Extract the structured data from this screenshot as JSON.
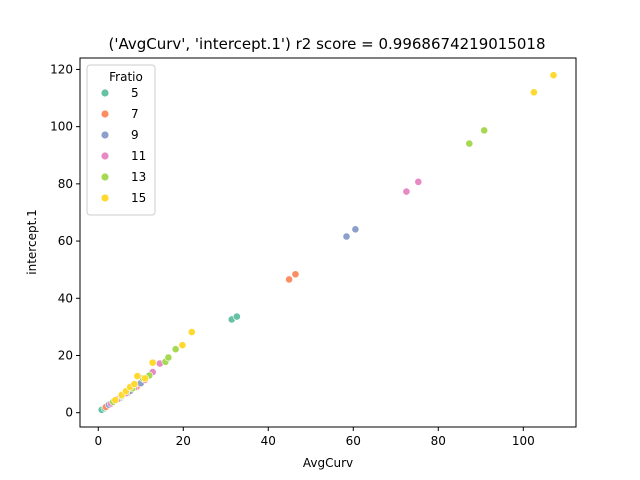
{
  "chart_data": {
    "type": "scatter",
    "title": "('AvgCurv', 'intercept.1') r2 score = 0.9968674219015018",
    "xlabel": "AvgCurv",
    "ylabel": "intercept.1",
    "xlim": [
      -4.3,
      112.4
    ],
    "ylim": [
      -5.0,
      124.0
    ],
    "xticks": [
      0,
      20,
      40,
      60,
      80,
      100
    ],
    "yticks": [
      0,
      20,
      40,
      60,
      80,
      100,
      120
    ],
    "grid": false,
    "legend": {
      "title": "Fratio",
      "placement": "top-left"
    },
    "series": [
      {
        "name": "5",
        "color": "#66c2a5",
        "points": [
          [
            0.8,
            1.0
          ],
          [
            1.5,
            1.6
          ],
          [
            2.5,
            2.6
          ],
          [
            3.5,
            3.7
          ],
          [
            5.0,
            5.0
          ],
          [
            7.0,
            7.0
          ],
          [
            9.0,
            9.5
          ],
          [
            31.4,
            32.6
          ],
          [
            32.6,
            33.6
          ]
        ]
      },
      {
        "name": "7",
        "color": "#fc8d62",
        "points": [
          [
            1.8,
            2.0
          ],
          [
            3.0,
            3.2
          ],
          [
            4.5,
            4.8
          ],
          [
            6.5,
            6.8
          ],
          [
            9.0,
            9.0
          ],
          [
            10.5,
            11.0
          ],
          [
            44.9,
            46.6
          ],
          [
            46.4,
            48.4
          ]
        ]
      },
      {
        "name": "9",
        "color": "#8da0cb",
        "points": [
          [
            2.5,
            2.8
          ],
          [
            4.0,
            4.2
          ],
          [
            5.5,
            5.7
          ],
          [
            7.5,
            7.6
          ],
          [
            10.0,
            10.3
          ],
          [
            58.4,
            61.6
          ],
          [
            60.5,
            64.1
          ]
        ]
      },
      {
        "name": "11",
        "color": "#e78ac3",
        "points": [
          [
            3.0,
            3.2
          ],
          [
            4.5,
            4.7
          ],
          [
            6.5,
            6.8
          ],
          [
            8.5,
            8.8
          ],
          [
            11.0,
            11.5
          ],
          [
            12.8,
            14.2
          ],
          [
            14.5,
            17.2
          ],
          [
            72.5,
            77.3
          ],
          [
            75.3,
            80.7
          ]
        ]
      },
      {
        "name": "13",
        "color": "#a6d854",
        "points": [
          [
            3.5,
            3.8
          ],
          [
            5.5,
            5.8
          ],
          [
            8.0,
            8.5
          ],
          [
            10.5,
            12.0
          ],
          [
            12.0,
            13.0
          ],
          [
            15.8,
            17.8
          ],
          [
            16.5,
            19.3
          ],
          [
            18.2,
            22.2
          ],
          [
            87.3,
            94.1
          ],
          [
            90.8,
            98.7
          ]
        ]
      },
      {
        "name": "15",
        "color": "#ffd92f",
        "points": [
          [
            4.0,
            4.4
          ],
          [
            5.5,
            6.2
          ],
          [
            6.5,
            7.5
          ],
          [
            7.5,
            9.0
          ],
          [
            8.5,
            10.0
          ],
          [
            9.2,
            12.8
          ],
          [
            11.0,
            12.0
          ],
          [
            12.8,
            17.5
          ],
          [
            19.8,
            23.6
          ],
          [
            22.0,
            28.2
          ],
          [
            102.5,
            112.0
          ],
          [
            107.1,
            118.0
          ]
        ]
      }
    ]
  }
}
